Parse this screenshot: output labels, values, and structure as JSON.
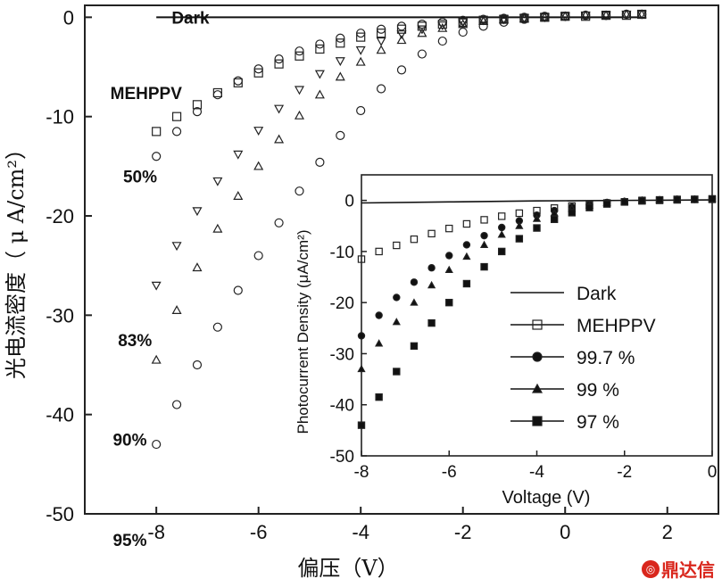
{
  "brand": {
    "watermark": "鼎达信",
    "accent": "#d9261c"
  },
  "chart_data": [
    {
      "type": "scatter",
      "title": "",
      "xlabel": "偏压（V）",
      "ylabel": "光电流密度（ μ A/cm²）",
      "xlim": [
        -9.4,
        3.0
      ],
      "ylim": [
        -50,
        1.2
      ],
      "xticks": [
        -8,
        -6,
        -4,
        -2,
        0,
        2
      ],
      "yticks": [
        0,
        -10,
        -20,
        -30,
        -40,
        -50
      ],
      "grid": false,
      "legend": "none",
      "series": [
        {
          "name": "Dark",
          "marker": "line",
          "label_pos": [
            -7.7,
            0
          ],
          "x": [
            -8.0,
            -6.0,
            -4.0,
            -2.0,
            0.0,
            1.0,
            1.5
          ],
          "y": [
            0,
            0,
            0,
            0,
            0,
            0,
            0
          ]
        },
        {
          "name": "MEHPPV",
          "marker": "square",
          "label_pos": [
            -8.9,
            -7.6
          ],
          "x": [
            -8.0,
            -7.6,
            -7.2,
            -6.8,
            -6.4,
            -6.0,
            -5.6,
            -5.2,
            -4.8,
            -4.4,
            -4.0,
            -3.6,
            -3.2,
            -2.8,
            -2.4,
            -2.0,
            -1.6,
            -1.2,
            -0.8,
            -0.4,
            0.0,
            0.4,
            0.8,
            1.2,
            1.5
          ],
          "y": [
            -11.5,
            -10.0,
            -8.8,
            -7.6,
            -6.6,
            -5.6,
            -4.7,
            -3.9,
            -3.2,
            -2.6,
            -2.0,
            -1.6,
            -1.2,
            -0.9,
            -0.7,
            -0.5,
            -0.3,
            -0.2,
            -0.1,
            0.0,
            0.1,
            0.1,
            0.2,
            0.2,
            0.3
          ]
        },
        {
          "name": "50%",
          "marker": "circle",
          "label_pos": [
            -8.65,
            -16.0
          ],
          "x": [
            -8.0,
            -7.6,
            -7.2,
            -6.8,
            -6.4,
            -6.0,
            -5.6,
            -5.2,
            -4.8,
            -4.4,
            -4.0,
            -3.6,
            -3.2,
            -2.8,
            -2.4,
            -2.0,
            -1.6,
            -1.2,
            -0.8,
            -0.4,
            0.0,
            0.4,
            0.8,
            1.2,
            1.5
          ],
          "y": [
            -14.0,
            -11.5,
            -9.5,
            -7.8,
            -6.4,
            -5.2,
            -4.2,
            -3.4,
            -2.7,
            -2.1,
            -1.6,
            -1.2,
            -0.9,
            -0.7,
            -0.5,
            -0.3,
            -0.2,
            -0.1,
            0.0,
            0.1,
            0.1,
            0.2,
            0.2,
            0.3,
            0.3
          ]
        },
        {
          "name": "83%",
          "marker": "triangle-down",
          "label_pos": [
            -8.75,
            -32.5
          ],
          "x": [
            -8.0,
            -7.6,
            -7.2,
            -6.8,
            -6.4,
            -6.0,
            -5.6,
            -5.2,
            -4.8,
            -4.4,
            -4.0,
            -3.6,
            -3.2,
            -2.8,
            -2.4,
            -2.0,
            -1.6,
            -1.2,
            -0.8,
            -0.4,
            0.0,
            0.4,
            0.8,
            1.2,
            1.5
          ],
          "y": [
            -27.0,
            -23.0,
            -19.5,
            -16.5,
            -13.8,
            -11.4,
            -9.2,
            -7.3,
            -5.7,
            -4.4,
            -3.3,
            -2.4,
            -1.7,
            -1.2,
            -0.8,
            -0.5,
            -0.3,
            -0.2,
            -0.1,
            0.0,
            0.1,
            0.2,
            0.2,
            0.3,
            0.3
          ]
        },
        {
          "name": "90%",
          "marker": "triangle-up",
          "label_pos": [
            -8.85,
            -42.5
          ],
          "x": [
            -8.0,
            -7.6,
            -7.2,
            -6.8,
            -6.4,
            -6.0,
            -5.6,
            -5.2,
            -4.8,
            -4.4,
            -4.0,
            -3.6,
            -3.2,
            -2.8,
            -2.4,
            -2.0,
            -1.6,
            -1.2,
            -0.8,
            -0.4,
            0.0,
            0.4,
            0.8,
            1.2,
            1.5
          ],
          "y": [
            -34.5,
            -29.5,
            -25.2,
            -21.3,
            -18.0,
            -15.0,
            -12.3,
            -9.9,
            -7.8,
            -6.0,
            -4.5,
            -3.3,
            -2.3,
            -1.6,
            -1.1,
            -0.7,
            -0.4,
            -0.2,
            -0.1,
            0.0,
            0.1,
            0.2,
            0.2,
            0.3,
            0.3
          ]
        },
        {
          "name": "95%",
          "marker": "circle",
          "label_pos": [
            -8.85,
            -52.6
          ],
          "x": [
            -8.0,
            -7.6,
            -7.2,
            -6.8,
            -6.4,
            -6.0,
            -5.6,
            -5.2,
            -4.8,
            -4.4,
            -4.0,
            -3.6,
            -3.2,
            -2.8,
            -2.4,
            -2.0,
            -1.6,
            -1.2,
            -0.8,
            -0.4,
            0.0,
            0.4,
            0.8,
            1.2,
            1.5
          ],
          "y": [
            -43.0,
            -39.0,
            -35.0,
            -31.2,
            -27.5,
            -24.0,
            -20.7,
            -17.5,
            -14.6,
            -11.9,
            -9.4,
            -7.2,
            -5.3,
            -3.7,
            -2.4,
            -1.5,
            -0.9,
            -0.5,
            -0.2,
            0.0,
            0.1,
            0.2,
            0.2,
            0.3,
            0.3
          ]
        }
      ]
    },
    {
      "type": "scatter",
      "title": "",
      "xlabel": "Voltage (V)",
      "ylabel": "Photocurrent Density (μA/cm²)",
      "xlim": [
        -8,
        0
      ],
      "ylim": [
        -50,
        5
      ],
      "xticks": [
        -8,
        -6,
        -4,
        -2,
        0
      ],
      "yticks": [
        0,
        -10,
        -20,
        -30,
        -40,
        -50
      ],
      "grid": false,
      "legend": "right",
      "series": [
        {
          "name": "Dark",
          "marker": "line",
          "x": [
            -8.0,
            -6.0,
            -4.0,
            -2.0,
            0.0
          ],
          "y": [
            -0.5,
            -0.3,
            -0.1,
            0.0,
            0.1
          ]
        },
        {
          "name": "MEHPPV",
          "marker": "square-open",
          "x": [
            -8.0,
            -7.6,
            -7.2,
            -6.8,
            -6.4,
            -6.0,
            -5.6,
            -5.2,
            -4.8,
            -4.4,
            -4.0,
            -3.6,
            -3.2,
            -2.8,
            -2.4,
            -2.0,
            -1.6,
            -1.2,
            -0.8,
            -0.4,
            0.0
          ],
          "y": [
            -11.5,
            -10.0,
            -8.8,
            -7.6,
            -6.5,
            -5.5,
            -4.6,
            -3.8,
            -3.1,
            -2.5,
            -2.0,
            -1.5,
            -1.1,
            -0.8,
            -0.5,
            -0.3,
            -0.1,
            0.0,
            0.1,
            0.2,
            0.2
          ]
        },
        {
          "name": "99.7 %",
          "marker": "circle-filled",
          "x": [
            -8.0,
            -7.6,
            -7.2,
            -6.8,
            -6.4,
            -6.0,
            -5.6,
            -5.2,
            -4.8,
            -4.4,
            -4.0,
            -3.6,
            -3.2,
            -2.8,
            -2.4,
            -2.0,
            -1.6,
            -1.2,
            -0.8,
            -0.4,
            0.0
          ],
          "y": [
            -26.5,
            -22.5,
            -19.0,
            -16.0,
            -13.2,
            -10.8,
            -8.7,
            -6.9,
            -5.3,
            -4.0,
            -2.9,
            -2.0,
            -1.3,
            -0.8,
            -0.4,
            -0.2,
            0.0,
            0.1,
            0.2,
            0.2,
            0.3
          ]
        },
        {
          "name": "99 %",
          "marker": "triangle-filled",
          "x": [
            -8.0,
            -7.6,
            -7.2,
            -6.8,
            -6.4,
            -6.0,
            -5.6,
            -5.2,
            -4.8,
            -4.4,
            -4.0,
            -3.6,
            -3.2,
            -2.8,
            -2.4,
            -2.0,
            -1.6,
            -1.2,
            -0.8,
            -0.4,
            0.0
          ],
          "y": [
            -33.0,
            -28.0,
            -23.8,
            -20.0,
            -16.6,
            -13.6,
            -11.0,
            -8.7,
            -6.7,
            -5.0,
            -3.6,
            -2.5,
            -1.6,
            -1.0,
            -0.5,
            -0.2,
            0.0,
            0.1,
            0.2,
            0.2,
            0.3
          ]
        },
        {
          "name": "97 %",
          "marker": "square-filled",
          "x": [
            -8.0,
            -7.6,
            -7.2,
            -6.8,
            -6.4,
            -6.0,
            -5.6,
            -5.2,
            -4.8,
            -4.4,
            -4.0,
            -3.6,
            -3.2,
            -2.8,
            -2.4,
            -2.0,
            -1.6,
            -1.2,
            -0.8,
            -0.4,
            0.0
          ],
          "y": [
            -44.0,
            -38.5,
            -33.5,
            -28.5,
            -24.0,
            -20.0,
            -16.3,
            -13.0,
            -10.0,
            -7.5,
            -5.4,
            -3.7,
            -2.4,
            -1.4,
            -0.7,
            -0.3,
            0.0,
            0.1,
            0.2,
            0.2,
            0.3
          ]
        }
      ]
    }
  ]
}
